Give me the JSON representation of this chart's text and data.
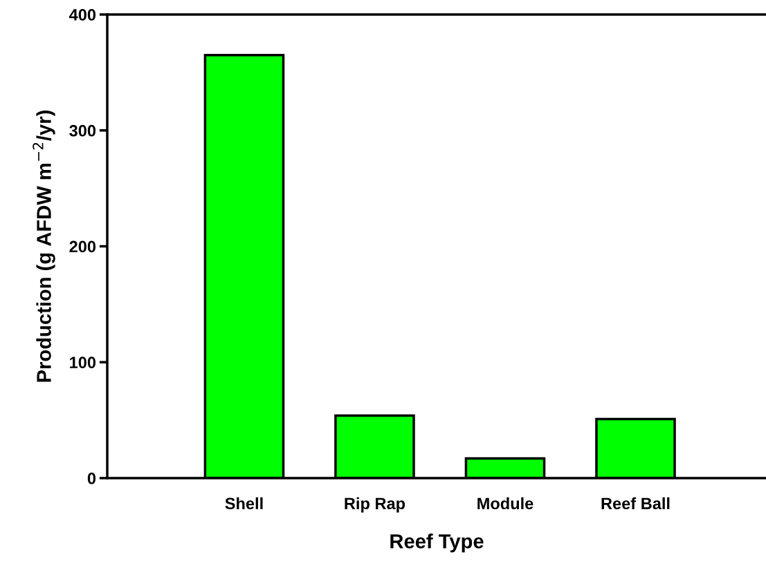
{
  "chart_data": {
    "type": "bar",
    "xlabel": "Reef Type",
    "ylabel": "Production (g AFDW m$^{−2}$/yr)",
    "categories": [
      "Shell",
      "Rip Rap",
      "Module",
      "Reef Ball"
    ],
    "values": [
      365,
      54,
      17,
      51
    ],
    "color": "#00ff00",
    "ylim": [
      0,
      400
    ],
    "yticks": [
      0,
      100,
      200,
      300,
      400
    ],
    "grid": false,
    "legend": false
  }
}
